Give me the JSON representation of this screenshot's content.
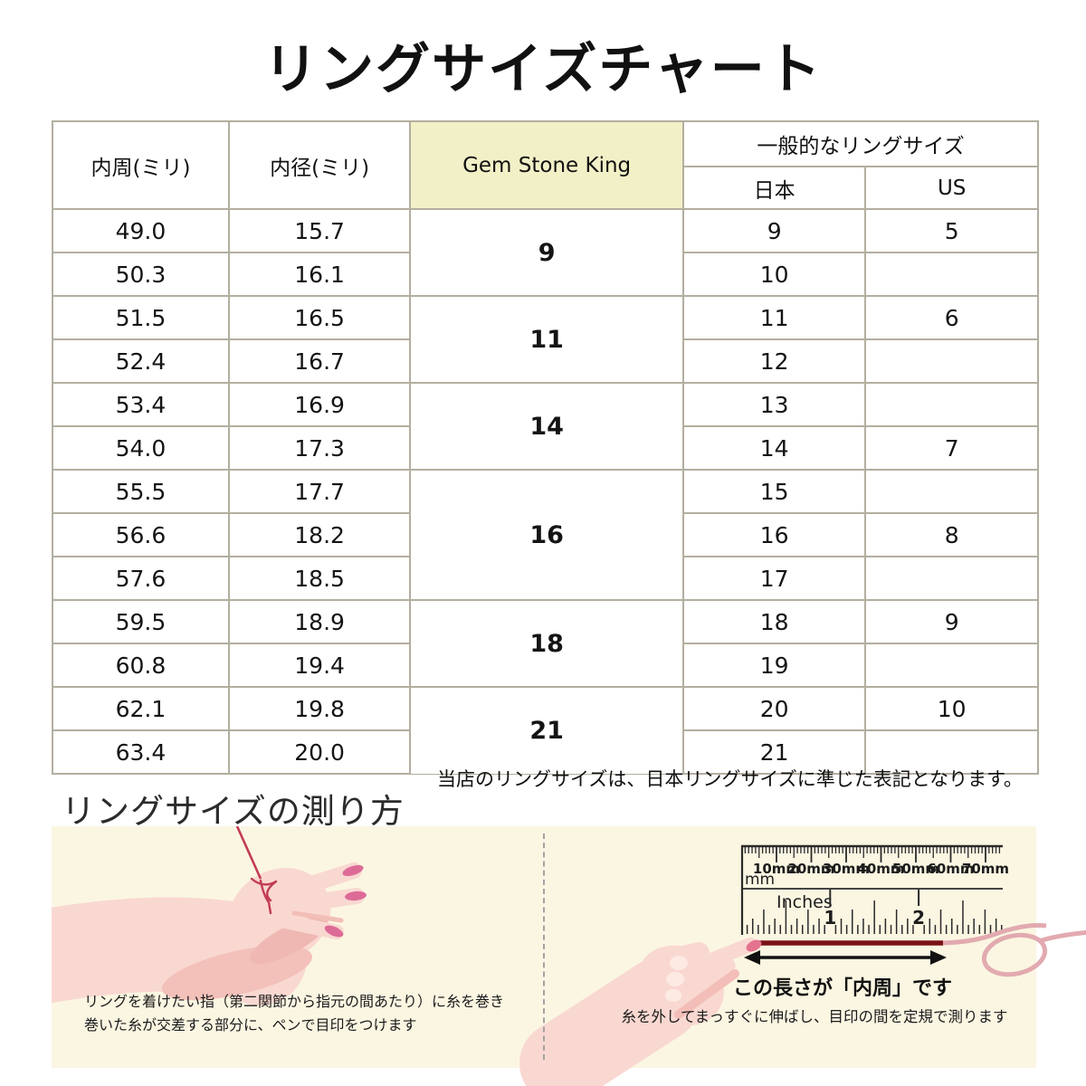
{
  "title": "リングサイズチャート",
  "table": {
    "headers": {
      "circumference": "内周(ミリ)",
      "diameter": "内径(ミリ)",
      "brand": "Gem Stone King",
      "common": "一般的なリングサイズ",
      "japan": "日本",
      "us": "US"
    },
    "groups": [
      {
        "gsk": "9",
        "rows": [
          {
            "circ": "49.0",
            "diam": "15.7",
            "jp": "9",
            "us": "5"
          },
          {
            "circ": "50.3",
            "diam": "16.1",
            "jp": "10",
            "us": ""
          }
        ]
      },
      {
        "gsk": "11",
        "rows": [
          {
            "circ": "51.5",
            "diam": "16.5",
            "jp": "11",
            "us": "6"
          },
          {
            "circ": "52.4",
            "diam": "16.7",
            "jp": "12",
            "us": ""
          }
        ]
      },
      {
        "gsk": "14",
        "rows": [
          {
            "circ": "53.4",
            "diam": "16.9",
            "jp": "13",
            "us": ""
          },
          {
            "circ": "54.0",
            "diam": "17.3",
            "jp": "14",
            "us": "7"
          }
        ]
      },
      {
        "gsk": "16",
        "rows": [
          {
            "circ": "55.5",
            "diam": "17.7",
            "jp": "15",
            "us": ""
          },
          {
            "circ": "56.6",
            "diam": "18.2",
            "jp": "16",
            "us": "8"
          },
          {
            "circ": "57.6",
            "diam": "18.5",
            "jp": "17",
            "us": ""
          }
        ]
      },
      {
        "gsk": "18",
        "rows": [
          {
            "circ": "59.5",
            "diam": "18.9",
            "jp": "18",
            "us": "9"
          },
          {
            "circ": "60.8",
            "diam": "19.4",
            "jp": "19",
            "us": ""
          }
        ]
      },
      {
        "gsk": "21",
        "rows": [
          {
            "circ": "62.1",
            "diam": "19.8",
            "jp": "20",
            "us": "10"
          },
          {
            "circ": "63.4",
            "diam": "20.0",
            "jp": "21",
            "us": ""
          }
        ]
      }
    ]
  },
  "note": "当店のリングサイズは、日本リングサイズに準じた表記となります。",
  "measure": {
    "heading": "リングサイズの測り方",
    "left_caption_line1": "リングを着けたい指（第二関節から指元の間あたり）に糸を巻き",
    "left_caption_line2": "巻いた糸が交差する部分に、ペンで目印をつけます",
    "right_caption_bold": "この長さが「内周」です",
    "right_caption": "糸を外してまっすぐに伸ばし、目印の間を定規で測ります",
    "ruler": {
      "mm_labels": [
        "10mm",
        "20mm",
        "30mm",
        "40mm",
        "50mm",
        "60mm",
        "70mm"
      ],
      "mm_unit": "mm",
      "inch_label": "Inches",
      "inch_numbers": [
        "1",
        "2"
      ]
    }
  },
  "colors": {
    "header_highlight": "#f2f0c7",
    "panel_background": "#fbf6e2",
    "table_border": "#b3ae9f",
    "skin": "#f9d8d1",
    "skin_shade": "#f2beb7",
    "nail": "#dd6b97",
    "string_red": "#c33b54",
    "thread_dark": "#7a1215",
    "thread_pink": "#e2aab0"
  }
}
